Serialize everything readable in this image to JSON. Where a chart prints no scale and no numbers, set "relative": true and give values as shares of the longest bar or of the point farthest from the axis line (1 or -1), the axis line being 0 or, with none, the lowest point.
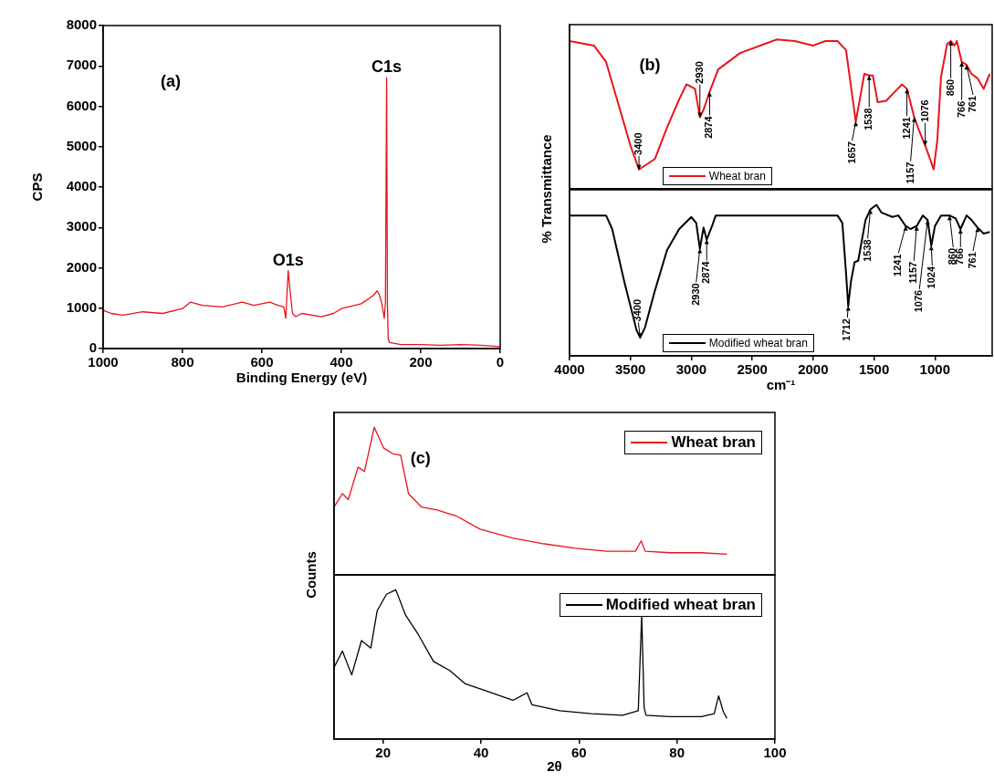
{
  "chart_data": [
    {
      "type": "line",
      "xlabel": "Binding Energy (eV)",
      "ylabel": "CPS",
      "annotations": [
        "(a)",
        {
          "text": "C1s",
          "x": 286,
          "y": 6710
        },
        {
          "text": "O1s",
          "x": 534,
          "y": 1930
        }
      ],
      "x": [
        1000,
        980,
        950,
        900,
        850,
        800,
        780,
        750,
        700,
        650,
        620,
        580,
        560,
        545,
        540,
        534,
        528,
        523,
        515,
        500,
        450,
        420,
        400,
        350,
        320,
        310,
        305,
        298,
        292,
        289,
        286,
        284,
        282,
        278,
        250,
        200,
        150,
        100,
        50,
        0
      ],
      "series": [
        {
          "color": "#e8141c",
          "values": [
            950,
            870,
            830,
            910,
            870,
            990,
            1150,
            1070,
            1030,
            1150,
            1070,
            1150,
            1070,
            1030,
            750,
            1930,
            1310,
            870,
            790,
            870,
            790,
            870,
            990,
            1110,
            1310,
            1430,
            1350,
            1110,
            750,
            1150,
            6710,
            1110,
            230,
            150,
            100,
            100,
            80,
            100,
            80,
            50
          ]
        }
      ],
      "xlim": [
        1000,
        0
      ],
      "xticks": [
        1000,
        800,
        600,
        400,
        200,
        0
      ],
      "ylim": [
        0,
        8000
      ],
      "yticks": [
        0,
        1000,
        2000,
        3000,
        4000,
        5000,
        6000,
        7000,
        8000
      ],
      "marker": "none"
    },
    {
      "type": "line",
      "relative": true,
      "ylabel": "% Transmittance",
      "annotations": [
        "(b)",
        {
          "text": "3400",
          "x": 3430,
          "y": 0.13
        },
        {
          "text": "2930",
          "x": 2930,
          "y": 0.48
        },
        {
          "text": "2874",
          "x": 2850,
          "y": 0.65
        },
        {
          "text": "1657",
          "x": 1650,
          "y": 0.45
        },
        {
          "text": "1538",
          "x": 1540,
          "y": 0.76
        },
        {
          "text": "1241",
          "x": 1230,
          "y": 0.67
        },
        {
          "text": "1157",
          "x": 1170,
          "y": 0.48
        },
        {
          "text": "1076",
          "x": 1080,
          "y": 0.29
        },
        {
          "text": "860",
          "x": 870,
          "y": 0.99
        },
        {
          "text": "766",
          "x": 780,
          "y": 0.85
        },
        {
          "text": "761",
          "x": 740,
          "y": 0.83
        }
      ],
      "x": [
        4000,
        3800,
        3700,
        3600,
        3500,
        3430,
        3300,
        3200,
        3100,
        3040,
        2970,
        2930,
        2900,
        2850,
        2780,
        2600,
        2400,
        2300,
        2150,
        2000,
        1900,
        1800,
        1730,
        1690,
        1650,
        1610,
        1580,
        1540,
        1510,
        1470,
        1400,
        1330,
        1270,
        1230,
        1170,
        1130,
        1080,
        1040,
        1010,
        980,
        950,
        900,
        870,
        840,
        820,
        780,
        740,
        700,
        650,
        600,
        550
      ],
      "series": [
        {
          "name": "Wheat bran",
          "color": "#e8141c",
          "values": [
            0.99,
            0.96,
            0.85,
            0.57,
            0.29,
            0.13,
            0.2,
            0.41,
            0.6,
            0.7,
            0.67,
            0.48,
            0.53,
            0.65,
            0.8,
            0.91,
            0.97,
            1,
            0.99,
            0.96,
            0.99,
            0.99,
            0.93,
            0.69,
            0.45,
            0.63,
            0.77,
            0.76,
            0.76,
            0.58,
            0.59,
            0.65,
            0.7,
            0.67,
            0.48,
            0.39,
            0.29,
            0.2,
            0.13,
            0.33,
            0.75,
            0.97,
            0.99,
            0.96,
            0.99,
            0.85,
            0.83,
            0.77,
            0.74,
            0.67,
            0.77
          ]
        }
      ],
      "xlim": [
        4000,
        530
      ],
      "legend": "bottom",
      "tick_labels": false,
      "marker": "none"
    },
    {
      "type": "line",
      "relative": true,
      "xlabel": "cm⁻¹",
      "annotations": [
        {
          "text": "3400",
          "x": 3420,
          "y": 0.12
        },
        {
          "text": "2930",
          "x": 2930,
          "y": 0.71
        },
        {
          "text": "2874",
          "x": 2874,
          "y": 0.77
        },
        {
          "text": "1712",
          "x": 1712,
          "y": 0.33
        },
        {
          "text": "1538",
          "x": 1530,
          "y": 0.97
        },
        {
          "text": "1241",
          "x": 1240,
          "y": 0.86
        },
        {
          "text": "1157",
          "x": 1150,
          "y": 0.86
        },
        {
          "text": "1076",
          "x": 1060,
          "y": 0.9
        },
        {
          "text": "1024",
          "x": 1030,
          "y": 0.73
        },
        {
          "text": "860",
          "x": 880,
          "y": 0.93
        },
        {
          "text": "766",
          "x": 790,
          "y": 0.84
        },
        {
          "text": "761",
          "x": 650,
          "y": 0.85
        }
      ],
      "x": [
        4000,
        3700,
        3650,
        3550,
        3450,
        3420,
        3380,
        3300,
        3200,
        3100,
        3000,
        2960,
        2930,
        2900,
        2874,
        2830,
        2800,
        2300,
        1800,
        1760,
        1730,
        1712,
        1690,
        1660,
        1630,
        1570,
        1530,
        1480,
        1440,
        1350,
        1300,
        1240,
        1200,
        1150,
        1100,
        1060,
        1030,
        1000,
        950,
        880,
        830,
        790,
        740,
        700,
        650,
        600,
        550
      ],
      "series": [
        {
          "name": "Modified wheat bran",
          "color": "#000000",
          "values": [
            0.93,
            0.93,
            0.84,
            0.49,
            0.17,
            0.12,
            0.19,
            0.43,
            0.7,
            0.84,
            0.92,
            0.88,
            0.71,
            0.85,
            0.77,
            0.86,
            0.93,
            0.93,
            0.93,
            0.88,
            0.55,
            0.33,
            0.49,
            0.62,
            0.63,
            0.9,
            0.97,
            1,
            0.95,
            0.92,
            0.93,
            0.86,
            0.84,
            0.86,
            0.93,
            0.9,
            0.73,
            0.86,
            0.93,
            0.93,
            0.91,
            0.84,
            0.93,
            0.9,
            0.85,
            0.81,
            0.82
          ]
        }
      ],
      "xlim": [
        4000,
        530
      ],
      "xticks": [
        4000,
        3500,
        3000,
        2500,
        2000,
        1500,
        1000
      ],
      "legend": "bottom",
      "tick_labels": "x",
      "marker": "none"
    },
    {
      "type": "line",
      "relative": true,
      "ylabel": "Counts",
      "annotations": [
        "(c)"
      ],
      "x": [
        10,
        11.7,
        12.9,
        14.9,
        16.2,
        18.2,
        20.1,
        22,
        23.6,
        25.2,
        27.8,
        31,
        34.9,
        39.8,
        46.4,
        52.9,
        59.3,
        65.7,
        71.5,
        72.7,
        73.5,
        78.6,
        85,
        90.2
      ],
      "series": [
        {
          "name": "Wheat bran",
          "color": "#e8141c",
          "values": [
            0.46,
            0.55,
            0.51,
            0.73,
            0.7,
            1,
            0.86,
            0.82,
            0.81,
            0.55,
            0.46,
            0.44,
            0.4,
            0.31,
            0.25,
            0.21,
            0.18,
            0.16,
            0.16,
            0.23,
            0.16,
            0.15,
            0.15,
            0.14
          ]
        }
      ],
      "xlim": [
        10,
        100
      ],
      "legend": "top right",
      "tick_labels": false,
      "marker": "none"
    },
    {
      "type": "line",
      "relative": true,
      "xlabel": "2θ",
      "x": [
        10,
        11.7,
        13.6,
        15.6,
        17.5,
        18.8,
        20.7,
        22.6,
        24.6,
        27.2,
        30.3,
        33.6,
        36.8,
        41.3,
        46.5,
        49.4,
        50.4,
        56.1,
        62.5,
        68.9,
        72.1,
        72.8,
        73.3,
        73.7,
        78.6,
        85,
        87.6,
        88.5,
        89.5,
        90.2
      ],
      "series": [
        {
          "name": "Modified wheat bran",
          "color": "#000000",
          "values": [
            0.48,
            0.59,
            0.43,
            0.66,
            0.61,
            0.86,
            0.97,
            1,
            0.83,
            0.7,
            0.52,
            0.46,
            0.37,
            0.32,
            0.26,
            0.31,
            0.23,
            0.19,
            0.17,
            0.16,
            0.19,
            0.83,
            0.21,
            0.16,
            0.15,
            0.15,
            0.17,
            0.29,
            0.18,
            0.14
          ]
        }
      ],
      "xlim": [
        10,
        100
      ],
      "xticks": [
        20,
        40,
        60,
        80,
        100
      ],
      "legend": "top right",
      "tick_labels": "x",
      "marker": "none"
    }
  ]
}
